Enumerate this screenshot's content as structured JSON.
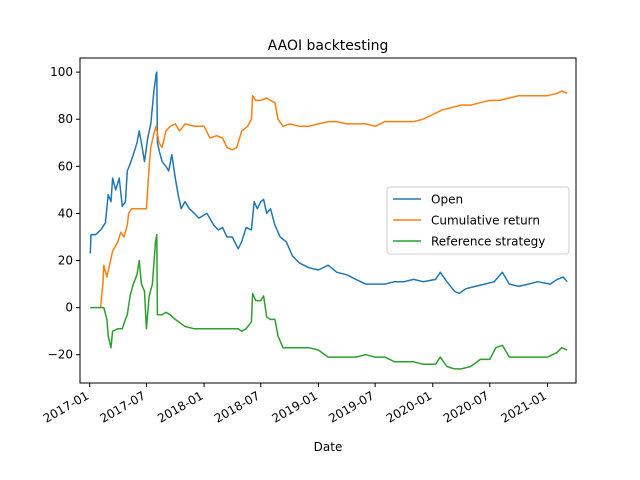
{
  "chart_data": {
    "type": "line",
    "title": "AAOI backtesting",
    "xlabel": "Date",
    "ylabel": "",
    "grid": false,
    "legend_position": "center-right",
    "xlim": [
      "2016-12-01",
      "2021-04-02"
    ],
    "ylim": [
      -32,
      106
    ],
    "x_ticks": [
      "2017-01",
      "2017-07",
      "2018-01",
      "2018-07",
      "2019-01",
      "2019-07",
      "2020-01",
      "2020-07",
      "2021-01"
    ],
    "y_ticks": [
      -20,
      0,
      20,
      40,
      60,
      80,
      100
    ],
    "series": [
      {
        "name": "Open",
        "color": "#1f77b4",
        "points": [
          [
            "2017-01-03",
            23
          ],
          [
            "2017-01-05",
            31
          ],
          [
            "2017-01-20",
            31
          ],
          [
            "2017-02-05",
            33
          ],
          [
            "2017-02-20",
            36
          ],
          [
            "2017-03-01",
            48
          ],
          [
            "2017-03-10",
            45
          ],
          [
            "2017-03-15",
            55
          ],
          [
            "2017-03-25",
            50
          ],
          [
            "2017-04-05",
            55
          ],
          [
            "2017-04-15",
            43
          ],
          [
            "2017-04-25",
            45
          ],
          [
            "2017-05-01",
            58
          ],
          [
            "2017-05-10",
            61
          ],
          [
            "2017-05-20",
            65
          ],
          [
            "2017-06-01",
            70
          ],
          [
            "2017-06-08",
            75
          ],
          [
            "2017-06-15",
            70
          ],
          [
            "2017-06-25",
            62
          ],
          [
            "2017-07-05",
            72
          ],
          [
            "2017-07-15",
            78
          ],
          [
            "2017-07-25",
            92
          ],
          [
            "2017-08-01",
            99
          ],
          [
            "2017-08-03",
            100
          ],
          [
            "2017-08-05",
            70
          ],
          [
            "2017-08-12",
            66
          ],
          [
            "2017-08-20",
            62
          ],
          [
            "2017-09-01",
            60
          ],
          [
            "2017-09-10",
            58
          ],
          [
            "2017-09-20",
            65
          ],
          [
            "2017-10-01",
            55
          ],
          [
            "2017-10-10",
            48
          ],
          [
            "2017-10-20",
            42
          ],
          [
            "2017-11-01",
            45
          ],
          [
            "2017-11-15",
            42
          ],
          [
            "2017-12-01",
            40
          ],
          [
            "2017-12-15",
            38
          ],
          [
            "2018-01-10",
            40
          ],
          [
            "2018-02-01",
            35
          ],
          [
            "2018-02-15",
            33
          ],
          [
            "2018-03-01",
            34
          ],
          [
            "2018-03-15",
            30
          ],
          [
            "2018-04-01",
            30
          ],
          [
            "2018-04-20",
            25
          ],
          [
            "2018-05-01",
            28
          ],
          [
            "2018-05-15",
            34
          ],
          [
            "2018-06-01",
            33
          ],
          [
            "2018-06-10",
            45
          ],
          [
            "2018-06-20",
            42
          ],
          [
            "2018-07-01",
            45
          ],
          [
            "2018-07-10",
            46
          ],
          [
            "2018-07-20",
            40
          ],
          [
            "2018-08-01",
            42
          ],
          [
            "2018-08-15",
            35
          ],
          [
            "2018-09-01",
            30
          ],
          [
            "2018-09-20",
            28
          ],
          [
            "2018-10-10",
            22
          ],
          [
            "2018-11-01",
            19
          ],
          [
            "2018-12-01",
            17
          ],
          [
            "2019-01-01",
            16
          ],
          [
            "2019-02-01",
            18
          ],
          [
            "2019-03-01",
            15
          ],
          [
            "2019-04-01",
            14
          ],
          [
            "2019-05-01",
            12
          ],
          [
            "2019-06-01",
            10
          ],
          [
            "2019-07-01",
            10
          ],
          [
            "2019-08-01",
            10
          ],
          [
            "2019-09-01",
            11
          ],
          [
            "2019-10-01",
            11
          ],
          [
            "2019-11-01",
            12
          ],
          [
            "2019-12-01",
            11
          ],
          [
            "2020-01-10",
            12
          ],
          [
            "2020-01-25",
            15
          ],
          [
            "2020-02-15",
            11
          ],
          [
            "2020-03-10",
            7
          ],
          [
            "2020-03-25",
            6
          ],
          [
            "2020-04-15",
            8
          ],
          [
            "2020-05-15",
            9
          ],
          [
            "2020-06-15",
            10
          ],
          [
            "2020-07-15",
            11
          ],
          [
            "2020-08-10",
            15
          ],
          [
            "2020-09-01",
            10
          ],
          [
            "2020-10-01",
            9
          ],
          [
            "2020-11-01",
            10
          ],
          [
            "2020-12-01",
            11
          ],
          [
            "2021-01-10",
            10
          ],
          [
            "2021-02-01",
            12
          ],
          [
            "2021-02-20",
            13
          ],
          [
            "2021-03-05",
            11
          ]
        ]
      },
      {
        "name": "Cumulative return",
        "color": "#ff7f0e",
        "points": [
          [
            "2017-02-05",
            0
          ],
          [
            "2017-02-08",
            5
          ],
          [
            "2017-02-12",
            10
          ],
          [
            "2017-02-15",
            18
          ],
          [
            "2017-02-25",
            13
          ],
          [
            "2017-03-05",
            18
          ],
          [
            "2017-03-15",
            24
          ],
          [
            "2017-04-01",
            28
          ],
          [
            "2017-04-10",
            32
          ],
          [
            "2017-04-20",
            30
          ],
          [
            "2017-05-01",
            35
          ],
          [
            "2017-05-05",
            40
          ],
          [
            "2017-05-15",
            42
          ],
          [
            "2017-06-01",
            42
          ],
          [
            "2017-06-20",
            42
          ],
          [
            "2017-07-01",
            42
          ],
          [
            "2017-07-10",
            60
          ],
          [
            "2017-07-15",
            68
          ],
          [
            "2017-07-25",
            74
          ],
          [
            "2017-08-01",
            77
          ],
          [
            "2017-08-10",
            70
          ],
          [
            "2017-08-20",
            68
          ],
          [
            "2017-09-01",
            75
          ],
          [
            "2017-09-15",
            77
          ],
          [
            "2017-10-01",
            78
          ],
          [
            "2017-10-15",
            75
          ],
          [
            "2017-11-01",
            78
          ],
          [
            "2017-12-01",
            77
          ],
          [
            "2018-01-01",
            77
          ],
          [
            "2018-01-20",
            72
          ],
          [
            "2018-02-10",
            73
          ],
          [
            "2018-03-01",
            72
          ],
          [
            "2018-03-15",
            68
          ],
          [
            "2018-04-01",
            67
          ],
          [
            "2018-04-15",
            68
          ],
          [
            "2018-05-01",
            75
          ],
          [
            "2018-05-20",
            77
          ],
          [
            "2018-06-01",
            80
          ],
          [
            "2018-06-05",
            90
          ],
          [
            "2018-06-15",
            88
          ],
          [
            "2018-07-01",
            88
          ],
          [
            "2018-07-20",
            89
          ],
          [
            "2018-08-01",
            88
          ],
          [
            "2018-08-15",
            87
          ],
          [
            "2018-08-25",
            80
          ],
          [
            "2018-09-10",
            77
          ],
          [
            "2018-10-01",
            78
          ],
          [
            "2018-11-01",
            77
          ],
          [
            "2018-12-01",
            77
          ],
          [
            "2019-01-01",
            78
          ],
          [
            "2019-02-01",
            79
          ],
          [
            "2019-03-01",
            79
          ],
          [
            "2019-04-01",
            78
          ],
          [
            "2019-05-01",
            78
          ],
          [
            "2019-06-01",
            78
          ],
          [
            "2019-07-01",
            77
          ],
          [
            "2019-08-01",
            79
          ],
          [
            "2019-09-01",
            79
          ],
          [
            "2019-10-01",
            79
          ],
          [
            "2019-11-01",
            79
          ],
          [
            "2019-12-01",
            80
          ],
          [
            "2020-01-01",
            82
          ],
          [
            "2020-02-01",
            84
          ],
          [
            "2020-03-01",
            85
          ],
          [
            "2020-04-01",
            86
          ],
          [
            "2020-05-01",
            86
          ],
          [
            "2020-06-01",
            87
          ],
          [
            "2020-07-01",
            88
          ],
          [
            "2020-08-01",
            88
          ],
          [
            "2020-09-01",
            89
          ],
          [
            "2020-10-01",
            90
          ],
          [
            "2020-11-01",
            90
          ],
          [
            "2020-12-01",
            90
          ],
          [
            "2021-01-01",
            90
          ],
          [
            "2021-02-01",
            91
          ],
          [
            "2021-02-15",
            92
          ],
          [
            "2021-03-05",
            91
          ]
        ]
      },
      {
        "name": "Reference strategy",
        "color": "#2ca02c",
        "points": [
          [
            "2017-01-03",
            0
          ],
          [
            "2017-02-05",
            0
          ],
          [
            "2017-02-15",
            0
          ],
          [
            "2017-02-25",
            -5
          ],
          [
            "2017-03-01",
            -12
          ],
          [
            "2017-03-10",
            -17
          ],
          [
            "2017-03-15",
            -10
          ],
          [
            "2017-04-01",
            -9
          ],
          [
            "2017-04-15",
            -9
          ],
          [
            "2017-04-25",
            -5
          ],
          [
            "2017-05-01",
            -3
          ],
          [
            "2017-05-10",
            5
          ],
          [
            "2017-05-20",
            10
          ],
          [
            "2017-06-01",
            14
          ],
          [
            "2017-06-08",
            20
          ],
          [
            "2017-06-15",
            10
          ],
          [
            "2017-06-25",
            7
          ],
          [
            "2017-07-01",
            -9
          ],
          [
            "2017-07-10",
            5
          ],
          [
            "2017-07-20",
            10
          ],
          [
            "2017-07-30",
            28
          ],
          [
            "2017-08-03",
            31
          ],
          [
            "2017-08-05",
            -3
          ],
          [
            "2017-08-20",
            -3
          ],
          [
            "2017-09-01",
            -2
          ],
          [
            "2017-09-15",
            -3
          ],
          [
            "2017-10-01",
            -5
          ],
          [
            "2017-11-01",
            -8
          ],
          [
            "2017-12-01",
            -9
          ],
          [
            "2018-01-01",
            -9
          ],
          [
            "2018-02-01",
            -9
          ],
          [
            "2018-03-01",
            -9
          ],
          [
            "2018-04-01",
            -9
          ],
          [
            "2018-04-20",
            -9
          ],
          [
            "2018-05-01",
            -10
          ],
          [
            "2018-05-15",
            -9
          ],
          [
            "2018-06-01",
            -6
          ],
          [
            "2018-06-05",
            6
          ],
          [
            "2018-06-15",
            3
          ],
          [
            "2018-07-01",
            3
          ],
          [
            "2018-07-10",
            5
          ],
          [
            "2018-07-20",
            -4
          ],
          [
            "2018-08-01",
            -5
          ],
          [
            "2018-08-15",
            -5
          ],
          [
            "2018-08-25",
            -12
          ],
          [
            "2018-09-10",
            -17
          ],
          [
            "2018-10-01",
            -17
          ],
          [
            "2018-11-01",
            -17
          ],
          [
            "2018-12-01",
            -17
          ],
          [
            "2019-01-01",
            -18
          ],
          [
            "2019-02-01",
            -21
          ],
          [
            "2019-03-01",
            -21
          ],
          [
            "2019-04-01",
            -21
          ],
          [
            "2019-05-01",
            -21
          ],
          [
            "2019-06-01",
            -20
          ],
          [
            "2019-07-01",
            -21
          ],
          [
            "2019-08-01",
            -21
          ],
          [
            "2019-09-01",
            -23
          ],
          [
            "2019-10-01",
            -23
          ],
          [
            "2019-11-01",
            -23
          ],
          [
            "2019-12-01",
            -24
          ],
          [
            "2020-01-10",
            -24
          ],
          [
            "2020-01-25",
            -21
          ],
          [
            "2020-02-15",
            -25
          ],
          [
            "2020-03-10",
            -26
          ],
          [
            "2020-04-01",
            -26
          ],
          [
            "2020-05-01",
            -25
          ],
          [
            "2020-06-01",
            -22
          ],
          [
            "2020-07-01",
            -22
          ],
          [
            "2020-07-20",
            -17
          ],
          [
            "2020-08-10",
            -16
          ],
          [
            "2020-09-01",
            -21
          ],
          [
            "2020-10-01",
            -21
          ],
          [
            "2020-11-01",
            -21
          ],
          [
            "2020-12-01",
            -21
          ],
          [
            "2021-01-01",
            -21
          ],
          [
            "2021-02-01",
            -19
          ],
          [
            "2021-02-15",
            -17
          ],
          [
            "2021-03-05",
            -18
          ]
        ]
      }
    ]
  }
}
